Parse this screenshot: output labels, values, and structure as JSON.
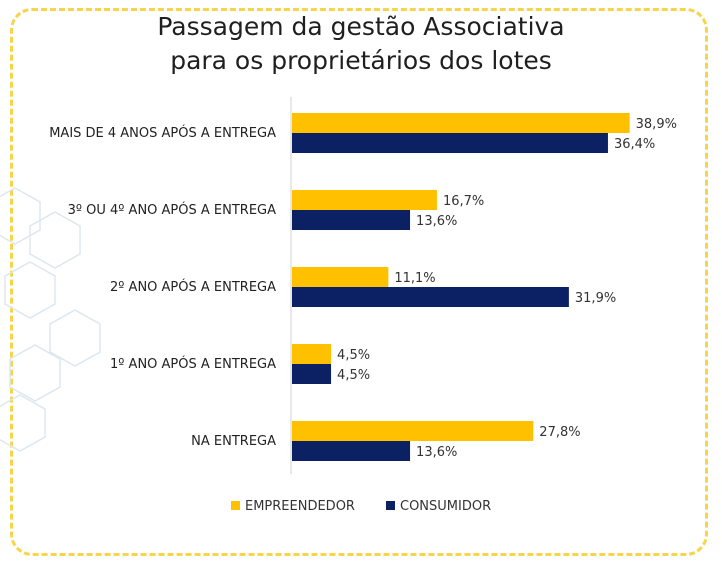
{
  "chart_data": {
    "type": "bar",
    "orientation": "horizontal",
    "title_lines": [
      "Passagem da gestão Associativa",
      "para os proprietários dos lotes"
    ],
    "categories": [
      "MAIS DE 4 ANOS APÓS A ENTREGA",
      "3º OU 4º ANO APÓS A ENTREGA",
      "2º ANO APÓS A ENTREGA",
      "1º ANO APÓS A ENTREGA",
      "NA ENTREGA"
    ],
    "series": [
      {
        "name": "EMPREENDEDOR",
        "color": "#ffc000",
        "values": [
          38.9,
          16.7,
          11.1,
          4.5,
          27.8
        ],
        "labels": [
          "38,9%",
          "16,7%",
          "11,1%",
          "4,5%",
          "27,8%"
        ]
      },
      {
        "name": "CONSUMIDOR",
        "color": "#0b2163",
        "values": [
          36.4,
          13.6,
          31.9,
          4.5,
          13.6
        ],
        "labels": [
          "36,4%",
          "13,6%",
          "31,9%",
          "4,5%",
          "13,6%"
        ]
      }
    ],
    "xlim": [
      0,
      45
    ],
    "grid": false,
    "legend_position": "bottom"
  }
}
